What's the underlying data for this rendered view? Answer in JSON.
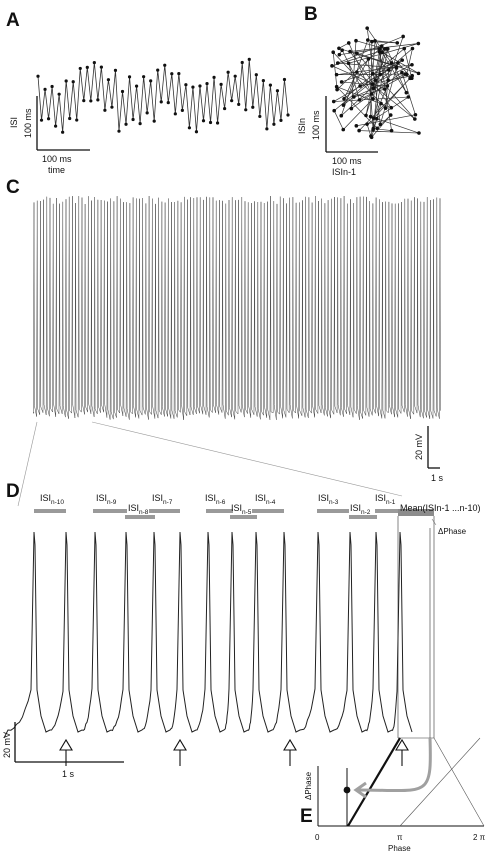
{
  "panels": {
    "A": {
      "letter": "A",
      "ylabel": "ISI",
      "yscale": "100 ms",
      "xscale": "100 ms",
      "xlabel": "time"
    },
    "B": {
      "letter": "B",
      "ylabel": "ISIn",
      "yscale": "100 ms",
      "xscale": "100 ms",
      "xlabel": "ISIn-1"
    },
    "C": {
      "letter": "C",
      "vscale": "20 mV",
      "tscale": "1 s"
    },
    "D": {
      "letter": "D",
      "isi_labels": [
        {
          "base": "ISI",
          "sub": "n-10"
        },
        {
          "base": "ISI",
          "sub": "n-9"
        },
        {
          "base": "ISI",
          "sub": "n-8"
        },
        {
          "base": "ISI",
          "sub": "n-7"
        },
        {
          "base": "ISI",
          "sub": "n-6"
        },
        {
          "base": "ISI",
          "sub": "n-5"
        },
        {
          "base": "ISI",
          "sub": "n-4"
        },
        {
          "base": "ISI",
          "sub": "n-3"
        },
        {
          "base": "ISI",
          "sub": "n-2"
        },
        {
          "base": "ISI",
          "sub": "n-1"
        }
      ],
      "mean_label": "Mean(ISIn-1 ...n-10)",
      "delta_phase_label": "ΔPhase",
      "vscale": "20 mV",
      "tscale": "1 s"
    },
    "E": {
      "letter": "E",
      "ylabel": "ΔPhase",
      "xlabel": "Phase",
      "ticks": [
        "0",
        "π",
        "2 π"
      ]
    }
  },
  "colors": {
    "trace": "#222222",
    "bar": "#9a9a9a",
    "arrow_gray": "#a0a0a0"
  },
  "icons": {
    "stim_marker": "hollow-up-arrow-icon"
  }
}
